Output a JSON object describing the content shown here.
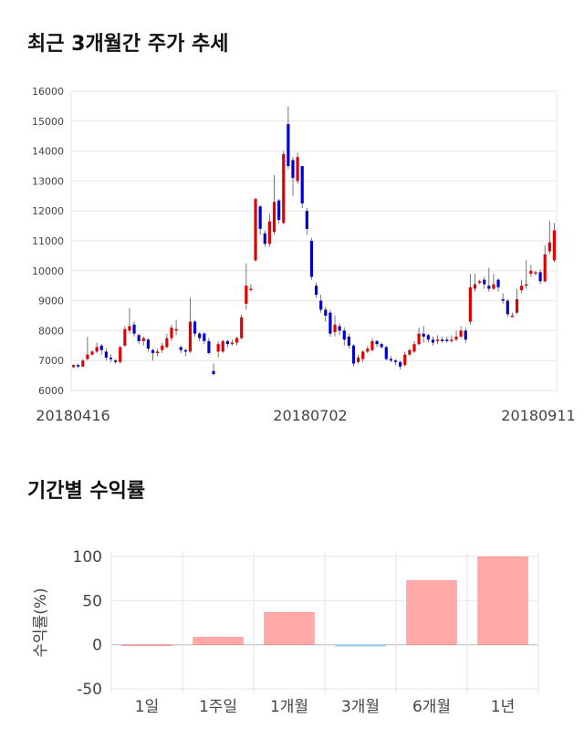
{
  "sections": {
    "price_title": "최근 3개월간 주가 추세",
    "return_title": "기간별 수익률"
  },
  "chart_data": [
    {
      "type": "candlestick",
      "title": "최근 3개월간 주가 추세",
      "ylim": [
        6000,
        16000
      ],
      "yticks": [
        6000,
        7000,
        8000,
        9000,
        10000,
        11000,
        12000,
        13000,
        14000,
        15000,
        16000
      ],
      "xtick_labels": [
        "20180416",
        "20180702",
        "20180911"
      ],
      "up_color": "#e00000",
      "down_color": "#0000cc",
      "grid": true,
      "candles": [
        [
          6780,
          6850,
          6750,
          6880
        ],
        [
          6850,
          6800,
          6750,
          6900
        ],
        [
          6800,
          7000,
          6780,
          7050
        ],
        [
          7050,
          7200,
          7000,
          7800
        ],
        [
          7200,
          7300,
          7150,
          7350
        ],
        [
          7300,
          7450,
          7250,
          7600
        ],
        [
          7500,
          7350,
          7200,
          7550
        ],
        [
          7300,
          7100,
          7000,
          7400
        ],
        [
          7100,
          7050,
          6950,
          7200
        ],
        [
          7000,
          6950,
          6900,
          7050
        ],
        [
          6950,
          7450,
          6900,
          7500
        ],
        [
          7500,
          8050,
          7450,
          8150
        ],
        [
          8000,
          8150,
          7900,
          8750
        ],
        [
          8200,
          7900,
          7800,
          8300
        ],
        [
          7850,
          7650,
          7550,
          7900
        ],
        [
          7650,
          7750,
          7500,
          7800
        ],
        [
          7700,
          7400,
          7300,
          7750
        ],
        [
          7350,
          7250,
          7000,
          7400
        ],
        [
          7250,
          7300,
          7150,
          7400
        ],
        [
          7350,
          7500,
          7250,
          7600
        ],
        [
          7450,
          7750,
          7400,
          7900
        ],
        [
          7750,
          8100,
          7650,
          8200
        ],
        [
          8000,
          8050,
          7850,
          8350
        ],
        [
          7450,
          7350,
          7250,
          7500
        ],
        [
          7350,
          7300,
          7150,
          7400
        ],
        [
          7300,
          8300,
          7250,
          9100
        ],
        [
          8300,
          7900,
          7800,
          8350
        ],
        [
          7900,
          7750,
          7650,
          7950
        ],
        [
          7900,
          7650,
          7550,
          7950
        ],
        [
          7650,
          7250,
          7200,
          7750
        ],
        [
          6650,
          6550,
          6500,
          6900
        ],
        [
          7300,
          7550,
          7100,
          7650
        ],
        [
          7300,
          7650,
          7250,
          7700
        ],
        [
          7650,
          7550,
          7450,
          7700
        ],
        [
          7550,
          7600,
          7500,
          7700
        ],
        [
          7600,
          7750,
          7500,
          7800
        ],
        [
          7750,
          8450,
          7700,
          8550
        ],
        [
          8900,
          9500,
          8700,
          10250
        ],
        [
          9400,
          9400,
          9300,
          9550
        ],
        [
          10350,
          12400,
          10300,
          12450
        ],
        [
          12150,
          11400,
          11200,
          12200
        ],
        [
          11250,
          10900,
          10800,
          11350
        ],
        [
          10900,
          11650,
          10800,
          11900
        ],
        [
          11300,
          12300,
          11200,
          13200
        ],
        [
          12350,
          11700,
          11600,
          12400
        ],
        [
          11600,
          13900,
          11550,
          14000
        ],
        [
          14900,
          13500,
          13400,
          15500
        ],
        [
          13700,
          13100,
          12500,
          13800
        ],
        [
          13000,
          13800,
          12900,
          13950
        ],
        [
          13500,
          12250,
          12100,
          13500
        ],
        [
          12000,
          11400,
          11200,
          12100
        ],
        [
          11000,
          9800,
          9700,
          11100
        ],
        [
          9500,
          9200,
          9100,
          9600
        ],
        [
          9000,
          8700,
          8600,
          9200
        ],
        [
          8700,
          8500,
          8300,
          8800
        ],
        [
          8600,
          7900,
          7800,
          8700
        ],
        [
          7950,
          8200,
          7800,
          8500
        ],
        [
          8150,
          8000,
          7850,
          8250
        ],
        [
          8000,
          7700,
          7500,
          8100
        ],
        [
          7800,
          7500,
          7400,
          7900
        ],
        [
          7500,
          6900,
          6800,
          7550
        ],
        [
          6950,
          7100,
          6900,
          7200
        ],
        [
          7050,
          7300,
          6950,
          7350
        ],
        [
          7300,
          7400,
          7250,
          7500
        ],
        [
          7350,
          7650,
          7300,
          7750
        ],
        [
          7650,
          7550,
          7450,
          7700
        ],
        [
          7550,
          7450,
          7400,
          7600
        ],
        [
          7450,
          7050,
          7000,
          7500
        ],
        [
          7050,
          7000,
          6950,
          7150
        ],
        [
          7000,
          6950,
          6850,
          7050
        ],
        [
          6950,
          6800,
          6700,
          7000
        ],
        [
          6850,
          7200,
          6800,
          7300
        ],
        [
          7200,
          7350,
          7150,
          7400
        ],
        [
          7300,
          7550,
          7250,
          7650
        ],
        [
          7550,
          7900,
          7500,
          8100
        ],
        [
          7900,
          7800,
          7600,
          8150
        ],
        [
          7850,
          7700,
          7600,
          7900
        ],
        [
          7700,
          7600,
          7500,
          7800
        ],
        [
          7650,
          7700,
          7550,
          7850
        ],
        [
          7700,
          7650,
          7600,
          7800
        ],
        [
          7700,
          7650,
          7600,
          7800
        ],
        [
          7650,
          7700,
          7600,
          7850
        ],
        [
          7700,
          7800,
          7650,
          8000
        ],
        [
          7800,
          8000,
          7750,
          8150
        ],
        [
          8000,
          7700,
          7600,
          8100
        ],
        [
          8300,
          9450,
          8200,
          9900
        ],
        [
          9400,
          9550,
          9300,
          9900
        ],
        [
          9600,
          9650,
          9550,
          9700
        ],
        [
          9700,
          9550,
          9400,
          9800
        ],
        [
          9500,
          9400,
          9300,
          10100
        ],
        [
          9400,
          9550,
          9350,
          9900
        ],
        [
          9700,
          9450,
          9300,
          9750
        ],
        [
          9050,
          9000,
          8900,
          9250
        ],
        [
          9000,
          8550,
          8450,
          9050
        ],
        [
          8500,
          8500,
          8450,
          8600
        ],
        [
          8600,
          9050,
          8550,
          9400
        ],
        [
          9350,
          9500,
          9250,
          9700
        ],
        [
          9500,
          9550,
          9400,
          10350
        ],
        [
          9900,
          10000,
          9800,
          10200
        ],
        [
          9950,
          9950,
          9850,
          10000
        ],
        [
          9950,
          9650,
          9550,
          10050
        ],
        [
          9650,
          10550,
          9600,
          10850
        ],
        [
          10650,
          10950,
          10550,
          11650
        ],
        [
          10350,
          11350,
          10300,
          11600
        ]
      ]
    },
    {
      "type": "bar",
      "title": "기간별 수익률",
      "categories": [
        "1일",
        "1주일",
        "1개월",
        "3개월",
        "6개월",
        "1년"
      ],
      "values": [
        0.0,
        8.5,
        36.5,
        -1.5,
        72.5,
        99.5
      ],
      "ylabel": "수익률(%)",
      "ylim": [
        -55,
        105
      ],
      "yticks": [
        -50,
        0,
        50,
        100
      ],
      "positive_color": "#ffa8a8",
      "negative_color": "#a8d8ee",
      "grid": true
    }
  ]
}
